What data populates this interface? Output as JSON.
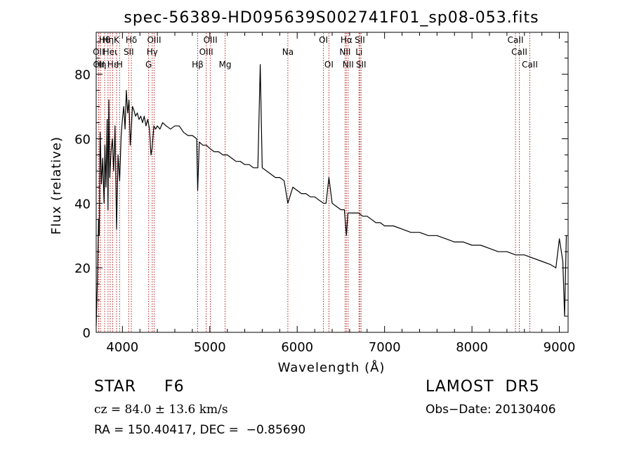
{
  "chart_data": {
    "type": "line",
    "title": "spec-56389-HD095639S002741F01_sp08-053.fits",
    "xlabel": "Wavelength (Å)",
    "ylabel": "Flux (relative)",
    "xlim": [
      3700,
      9100
    ],
    "ylim": [
      0,
      93
    ],
    "xticks": [
      4000,
      5000,
      6000,
      7000,
      8000,
      9000
    ],
    "yticks": [
      0,
      20,
      40,
      60,
      80
    ],
    "grid": false,
    "line_color": "#000000",
    "marker_color": "#b22222",
    "series": [
      {
        "x": [
          3700,
          3712,
          3727,
          3735,
          3745,
          3760,
          3775,
          3790,
          3800,
          3812,
          3825,
          3835,
          3845,
          3855,
          3870,
          3885,
          3900,
          3915,
          3933,
          3950,
          3968,
          3985,
          4000,
          4015,
          4030,
          4045,
          4060,
          4075,
          4090,
          4102,
          4115,
          4130,
          4150,
          4170,
          4190,
          4210,
          4230,
          4250,
          4270,
          4290,
          4310,
          4327,
          4340,
          4360,
          4380,
          4400,
          4430,
          4460,
          4500,
          4550,
          4600,
          4650,
          4700,
          4750,
          4800,
          4850,
          4861,
          4880,
          4920,
          4960,
          5000,
          5050,
          5100,
          5150,
          5200,
          5250,
          5300,
          5350,
          5400,
          5450,
          5500,
          5550,
          5577,
          5600,
          5650,
          5700,
          5750,
          5800,
          5850,
          5893,
          5950,
          6000,
          6050,
          6100,
          6150,
          6200,
          6250,
          6300,
          6330,
          6363,
          6400,
          6450,
          6500,
          6540,
          6563,
          6580,
          6620,
          6680,
          6700,
          6750,
          6800,
          6850,
          6900,
          6950,
          7000,
          7100,
          7200,
          7300,
          7400,
          7500,
          7600,
          7700,
          7800,
          7900,
          8000,
          8100,
          8200,
          8300,
          8400,
          8500,
          8600,
          8700,
          8800,
          8900,
          8960,
          9000,
          9040,
          9060,
          9080
        ],
        "y": [
          2,
          14,
          35,
          30,
          62,
          46,
          54,
          40,
          58,
          45,
          66,
          38,
          72,
          48,
          56,
          60,
          50,
          64,
          32,
          55,
          47,
          61,
          66,
          70,
          63,
          75,
          68,
          72,
          58,
          63,
          70,
          69,
          67,
          68,
          66,
          67,
          65,
          67,
          64,
          66,
          63,
          55,
          57,
          64,
          63,
          64,
          63,
          65,
          64,
          63,
          64,
          64,
          62,
          61,
          61,
          60,
          44,
          59,
          58,
          58,
          57,
          56,
          56,
          55,
          55,
          54,
          53,
          53,
          52,
          52,
          51,
          51,
          83,
          51,
          50,
          49,
          48,
          48,
          47,
          40,
          45,
          44,
          43,
          43,
          42,
          42,
          41,
          40,
          40,
          48,
          40,
          39,
          38,
          38,
          30,
          37,
          37,
          37,
          37,
          36,
          36,
          35,
          34,
          34,
          33,
          33,
          32,
          31,
          31,
          30,
          30,
          29,
          28,
          28,
          27,
          27,
          26,
          25,
          25,
          24,
          24,
          23,
          22,
          21,
          20,
          29,
          22,
          5,
          30
        ]
      }
    ],
    "lines": [
      {
        "wavelength": 3727,
        "label": "OII",
        "row": 2
      },
      {
        "wavelength": 3730,
        "label": "OII",
        "row": 3
      },
      {
        "wavelength": 3750,
        "label": "Hη",
        "row": 3
      },
      {
        "wavelength": 3797,
        "label": "Hθ",
        "row": 1
      },
      {
        "wavelength": 3835,
        "label": "Hη",
        "row": 1
      },
      {
        "wavelength": 3860,
        "label": "Heι",
        "row": 2
      },
      {
        "wavelength": 3889,
        "label": "Hε",
        "row": 3
      },
      {
        "wavelength": 3933,
        "label": "K",
        "row": 1
      },
      {
        "wavelength": 3968,
        "label": "H",
        "row": 3
      },
      {
        "wavelength": 4072,
        "label": "SII",
        "row": 2
      },
      {
        "wavelength": 4102,
        "label": "Hδ",
        "row": 1
      },
      {
        "wavelength": 4300,
        "label": "G",
        "row": 3
      },
      {
        "wavelength": 4341,
        "label": "Hγ",
        "row": 2
      },
      {
        "wavelength": 4363,
        "label": "OIII",
        "row": 1
      },
      {
        "wavelength": 4861,
        "label": "Hβ",
        "row": 3
      },
      {
        "wavelength": 4959,
        "label": "OIII",
        "row": 2
      },
      {
        "wavelength": 5007,
        "label": "OIII",
        "row": 1
      },
      {
        "wavelength": 5175,
        "label": "Mg",
        "row": 3
      },
      {
        "wavelength": 5893,
        "label": "Na",
        "row": 2
      },
      {
        "wavelength": 6300,
        "label": "OI",
        "row": 1
      },
      {
        "wavelength": 6363,
        "label": "OI",
        "row": 3
      },
      {
        "wavelength": 6548,
        "label": "NII",
        "row": 2
      },
      {
        "wavelength": 6563,
        "label": "Hα",
        "row": 1
      },
      {
        "wavelength": 6583,
        "label": "NII",
        "row": 3
      },
      {
        "wavelength": 6707,
        "label": "Li",
        "row": 2
      },
      {
        "wavelength": 6717,
        "label": "SII",
        "row": 1
      },
      {
        "wavelength": 6731,
        "label": "SII",
        "row": 3
      },
      {
        "wavelength": 8498,
        "label": "CaII",
        "row": 1
      },
      {
        "wavelength": 8542,
        "label": "CaII",
        "row": 2
      },
      {
        "wavelength": 8662,
        "label": "CaII",
        "row": 3
      }
    ]
  },
  "info": {
    "object_class": "STAR     F6",
    "survey": "LAMOST  DR5",
    "cz": "cz = 84.0 ± 13.6 km/s",
    "obs_date": "Obs−Date: 20130406",
    "radec": "RA = 150.40417, DEC =  −0.85690"
  }
}
